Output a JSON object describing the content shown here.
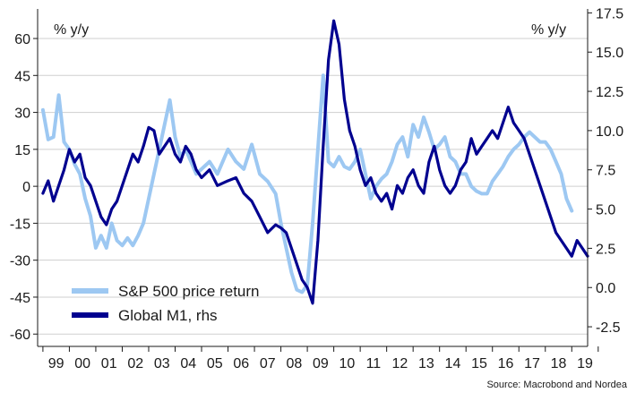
{
  "chart_data": {
    "type": "line",
    "title": "",
    "source": "Source: Macrobond and Nordea",
    "x_tick_labels": [
      "99",
      "00",
      "01",
      "02",
      "03",
      "04",
      "05",
      "06",
      "07",
      "08",
      "09",
      "10",
      "11",
      "12",
      "13",
      "14",
      "15",
      "16",
      "17",
      "18",
      "19"
    ],
    "x_range": [
      1998.8,
      2019.6
    ],
    "y_left": {
      "unit_label": "% y/y",
      "range": [
        -65,
        72
      ],
      "ticks": [
        -60,
        -45,
        -30,
        -15,
        0,
        15,
        30,
        45,
        60
      ]
    },
    "y_right": {
      "unit_label": "% y/y",
      "range": [
        -3.75,
        17.75
      ],
      "ticks": [
        -2.5,
        0.0,
        2.5,
        5.0,
        7.5,
        10.0,
        12.5,
        15.0,
        17.5
      ],
      "tick_labels": [
        "-2.5",
        "0.0",
        "2.5",
        "5.0",
        "7.5",
        "10.0",
        "12.5",
        "15.0",
        "17.5"
      ]
    },
    "grid": true,
    "legend_placement": "bottom-left",
    "colors": {
      "sp500": "#9dc8f2",
      "m1": "#00008f",
      "grid": "#cfcfcf",
      "axis": "#1a1a1a"
    },
    "series": [
      {
        "key": "sp500",
        "name": "S&P 500 price return",
        "axis": "left",
        "x": [
          1999.0,
          1999.2,
          1999.4,
          1999.6,
          1999.8,
          2000.0,
          2000.2,
          2000.4,
          2000.6,
          2000.8,
          2001.0,
          2001.2,
          2001.4,
          2001.6,
          2001.8,
          2002.0,
          2002.2,
          2002.4,
          2002.6,
          2002.8,
          2003.0,
          2003.2,
          2003.4,
          2003.6,
          2003.8,
          2004.0,
          2004.2,
          2004.4,
          2004.6,
          2004.8,
          2005.0,
          2005.3,
          2005.6,
          2006.0,
          2006.3,
          2006.6,
          2006.9,
          2007.2,
          2007.5,
          2007.8,
          2008.0,
          2008.2,
          2008.4,
          2008.6,
          2008.8,
          2009.0,
          2009.2,
          2009.4,
          2009.6,
          2009.8,
          2010.0,
          2010.2,
          2010.4,
          2010.6,
          2010.8,
          2011.0,
          2011.2,
          2011.4,
          2011.6,
          2011.8,
          2012.0,
          2012.2,
          2012.4,
          2012.6,
          2012.8,
          2013.0,
          2013.2,
          2013.4,
          2013.6,
          2013.8,
          2014.0,
          2014.2,
          2014.4,
          2014.6,
          2014.8,
          2015.0,
          2015.2,
          2015.4,
          2015.6,
          2015.8,
          2016.0,
          2016.2,
          2016.4,
          2016.6,
          2016.8,
          2017.0,
          2017.2,
          2017.4,
          2017.6,
          2017.8,
          2018.0,
          2018.2,
          2018.4,
          2018.6,
          2018.8,
          2019.0
        ],
        "values": [
          31,
          19,
          20,
          37,
          18,
          15,
          9,
          5,
          -5,
          -12,
          -25,
          -20,
          -25,
          -15,
          -22,
          -24,
          -21,
          -24,
          -20,
          -15,
          -5,
          5,
          15,
          25,
          35,
          20,
          12,
          15,
          10,
          5,
          7,
          10,
          5,
          15,
          10,
          7,
          17,
          5,
          2,
          -3,
          -15,
          -25,
          -35,
          -42,
          -43,
          -40,
          -15,
          15,
          45,
          10,
          8,
          12,
          8,
          7,
          10,
          15,
          5,
          -5,
          0,
          3,
          5,
          10,
          17,
          20,
          12,
          25,
          20,
          28,
          22,
          15,
          17,
          20,
          12,
          10,
          5,
          5,
          0,
          -2,
          -3,
          -3,
          2,
          5,
          8,
          12,
          15,
          17,
          20,
          22,
          20,
          18,
          18,
          15,
          10,
          5,
          -5,
          -10
        ]
      },
      {
        "key": "m1",
        "name": "Global M1, rhs",
        "axis": "right",
        "x": [
          1999.0,
          1999.2,
          1999.4,
          1999.6,
          1999.8,
          2000.0,
          2000.2,
          2000.4,
          2000.6,
          2000.8,
          2001.0,
          2001.2,
          2001.4,
          2001.6,
          2001.8,
          2002.0,
          2002.2,
          2002.4,
          2002.6,
          2002.8,
          2003.0,
          2003.2,
          2003.4,
          2003.6,
          2003.8,
          2004.0,
          2004.2,
          2004.4,
          2004.6,
          2004.8,
          2005.0,
          2005.3,
          2005.6,
          2006.0,
          2006.3,
          2006.6,
          2006.9,
          2007.2,
          2007.5,
          2007.8,
          2008.0,
          2008.2,
          2008.4,
          2008.6,
          2008.8,
          2009.0,
          2009.2,
          2009.4,
          2009.6,
          2009.8,
          2010.0,
          2010.2,
          2010.4,
          2010.6,
          2010.8,
          2011.0,
          2011.2,
          2011.4,
          2011.6,
          2011.8,
          2012.0,
          2012.2,
          2012.4,
          2012.6,
          2012.8,
          2013.0,
          2013.2,
          2013.4,
          2013.6,
          2013.8,
          2014.0,
          2014.2,
          2014.4,
          2014.6,
          2014.8,
          2015.0,
          2015.2,
          2015.4,
          2015.6,
          2015.8,
          2016.0,
          2016.2,
          2016.4,
          2016.6,
          2016.8,
          2017.0,
          2017.2,
          2017.4,
          2017.6,
          2017.8,
          2018.0,
          2018.2,
          2018.4,
          2018.6,
          2018.8,
          2019.0,
          2019.2,
          2019.4,
          2019.6
        ],
        "values": [
          6.0,
          6.8,
          5.5,
          6.5,
          7.5,
          8.8,
          8.0,
          8.5,
          7.0,
          6.5,
          5.5,
          4.5,
          4.0,
          5.0,
          5.5,
          6.5,
          7.5,
          8.5,
          8.0,
          9.0,
          10.2,
          10.0,
          8.5,
          9.0,
          9.5,
          8.5,
          8.0,
          9.0,
          8.5,
          7.5,
          7.0,
          7.5,
          6.5,
          6.8,
          7.0,
          6.0,
          5.5,
          4.5,
          3.5,
          4.0,
          3.8,
          3.5,
          2.5,
          1.5,
          0.5,
          0.0,
          -1.0,
          3.0,
          9.0,
          14.5,
          17.0,
          15.5,
          12.0,
          10.0,
          9.0,
          7.5,
          6.5,
          7.0,
          6.0,
          5.5,
          6.0,
          5.0,
          6.5,
          6.0,
          7.0,
          7.5,
          6.5,
          6.0,
          8.0,
          9.0,
          7.5,
          6.5,
          6.0,
          6.5,
          7.5,
          8.0,
          9.5,
          8.5,
          9.0,
          9.5,
          10.0,
          9.5,
          10.5,
          11.5,
          10.5,
          10.0,
          9.5,
          8.5,
          7.5,
          6.5,
          5.5,
          4.5,
          3.5,
          3.0,
          2.5,
          2.0,
          3.0,
          2.5,
          2.0
        ]
      }
    ]
  }
}
